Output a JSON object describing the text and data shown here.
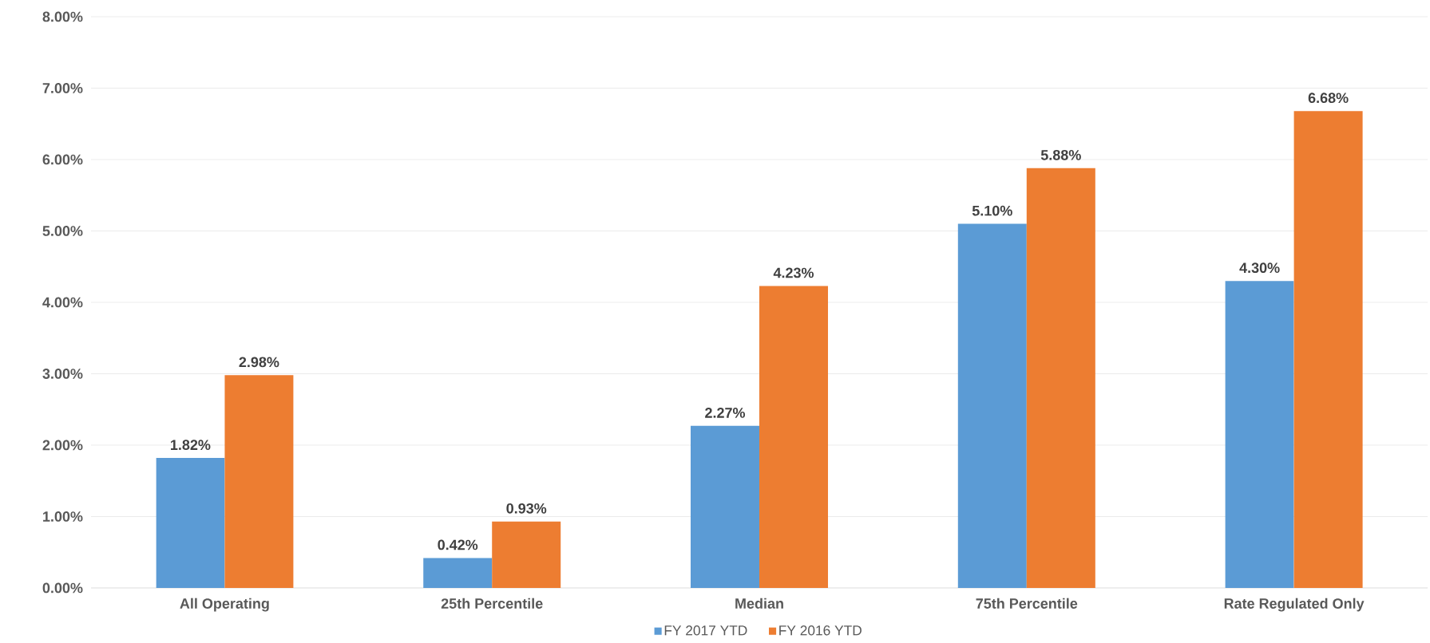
{
  "chart_data": {
    "type": "bar",
    "categories": [
      "All Operating",
      "25th Percentile",
      "Median",
      "75th Percentile",
      "Rate Regulated Only"
    ],
    "series": [
      {
        "name": "FY 2017 YTD",
        "color": "#5b9bd5",
        "values": [
          1.82,
          0.42,
          2.27,
          5.1,
          4.3
        ],
        "value_labels": [
          "1.82%",
          "0.42%",
          "2.27%",
          "5.10%",
          "4.30%"
        ]
      },
      {
        "name": "FY 2016 YTD",
        "color": "#ed7d31",
        "values": [
          2.98,
          0.93,
          4.23,
          5.88,
          6.68
        ],
        "value_labels": [
          "2.98%",
          "0.93%",
          "4.23%",
          "5.88%",
          "6.68%"
        ]
      }
    ],
    "ylim": [
      0,
      8
    ],
    "yticks": [
      {
        "value": 0,
        "label": "0.00%"
      },
      {
        "value": 1,
        "label": "1.00%"
      },
      {
        "value": 2,
        "label": "2.00%"
      },
      {
        "value": 3,
        "label": "3.00%"
      },
      {
        "value": 4,
        "label": "4.00%"
      },
      {
        "value": 5,
        "label": "5.00%"
      },
      {
        "value": 6,
        "label": "6.00%"
      },
      {
        "value": 7,
        "label": "7.00%"
      },
      {
        "value": 8,
        "label": "8.00%"
      }
    ],
    "grid": "y",
    "legend": "bottom"
  }
}
